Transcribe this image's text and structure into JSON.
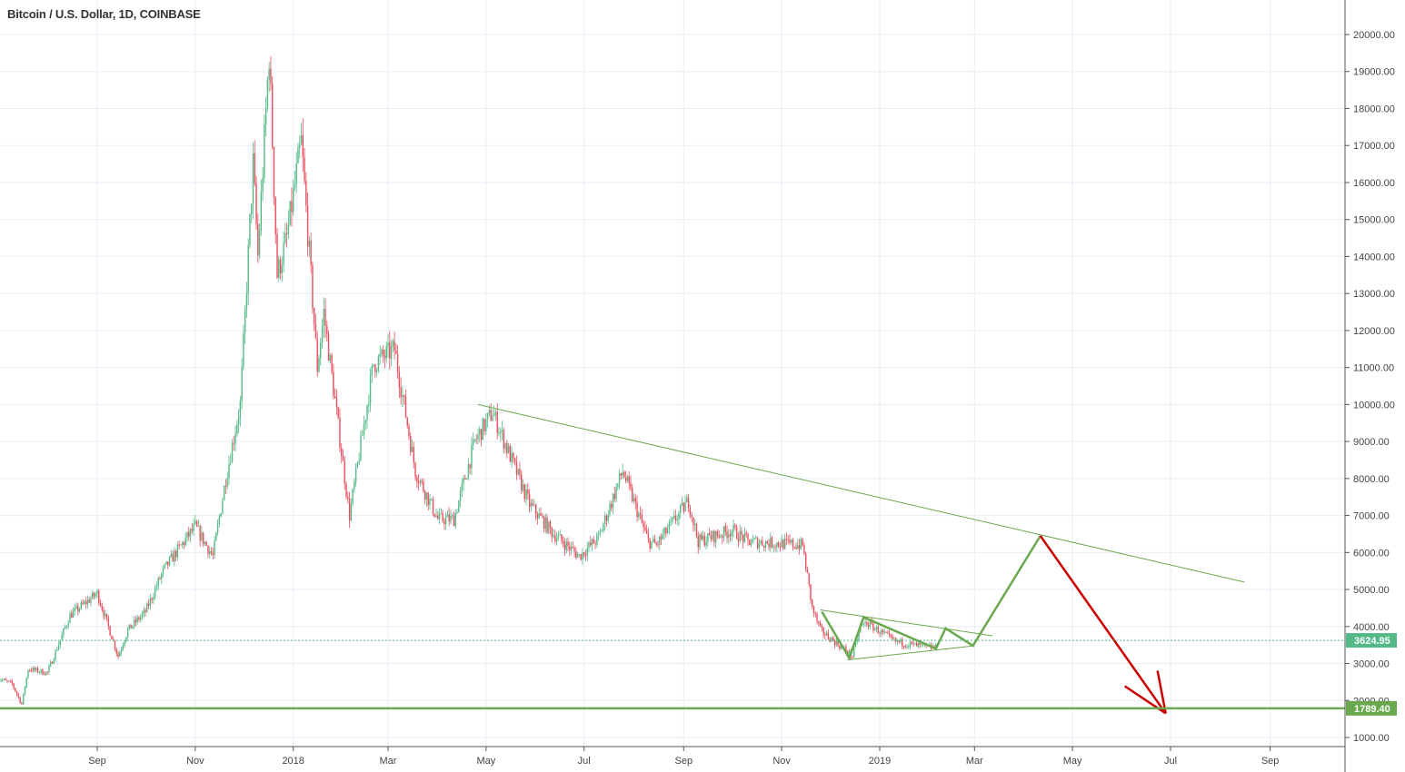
{
  "header": {
    "title": "Bitcoin / U.S. Dollar, 1D, COINBASE"
  },
  "chart_data": {
    "type": "candlestick",
    "title": "Bitcoin / U.S. Dollar, 1D, COINBASE",
    "ylim": [
      1000,
      20000
    ],
    "y_ticks": [
      "1000.00",
      "2000.00",
      "3000.00",
      "4000.00",
      "5000.00",
      "6000.00",
      "7000.00",
      "8000.00",
      "9000.00",
      "10000.00",
      "11000.00",
      "12000.00",
      "13000.00",
      "14000.00",
      "15000.00",
      "16000.00",
      "17000.00",
      "18000.00",
      "19000.00",
      "20000.00"
    ],
    "x_ticks": [
      {
        "label": "Sep",
        "date": "2017-09-01"
      },
      {
        "label": "Nov",
        "date": "2017-11-01"
      },
      {
        "label": "2018",
        "date": "2018-01-01"
      },
      {
        "label": "Mar",
        "date": "2018-03-01"
      },
      {
        "label": "May",
        "date": "2018-05-01"
      },
      {
        "label": "Jul",
        "date": "2018-07-01"
      },
      {
        "label": "Sep",
        "date": "2018-09-01"
      },
      {
        "label": "Nov",
        "date": "2018-11-01"
      },
      {
        "label": "2019",
        "date": "2019-01-01"
      },
      {
        "label": "Mar",
        "date": "2019-03-01"
      },
      {
        "label": "May",
        "date": "2019-05-01"
      },
      {
        "label": "Jul",
        "date": "2019-07-01"
      },
      {
        "label": "Sep",
        "date": "2019-09-01"
      }
    ],
    "grid": true,
    "colors": {
      "up": "#53b987",
      "down": "#eb4d5c",
      "drawing_green": "#6aa84f",
      "arrow_red": "#cc0000",
      "grid": "#e6eef5"
    },
    "close_path": [
      [
        "2017-07-01",
        2600
      ],
      [
        "2017-07-10",
        2450
      ],
      [
        "2017-07-16",
        1900
      ],
      [
        "2017-07-20",
        2850
      ],
      [
        "2017-08-01",
        2750
      ],
      [
        "2017-08-15",
        4300
      ],
      [
        "2017-09-01",
        4900
      ],
      [
        "2017-09-14",
        3200
      ],
      [
        "2017-09-20",
        3900
      ],
      [
        "2017-10-01",
        4400
      ],
      [
        "2017-10-12",
        5500
      ],
      [
        "2017-10-20",
        6000
      ],
      [
        "2017-11-01",
        6700
      ],
      [
        "2017-11-12",
        5900
      ],
      [
        "2017-11-20",
        8000
      ],
      [
        "2017-11-29",
        10000
      ],
      [
        "2017-12-07",
        16500
      ],
      [
        "2017-12-10",
        14000
      ],
      [
        "2017-12-17",
        19500
      ],
      [
        "2017-12-22",
        13500
      ],
      [
        "2017-12-28",
        14500
      ],
      [
        "2018-01-06",
        17100
      ],
      [
        "2018-01-16",
        11000
      ],
      [
        "2018-01-20",
        12500
      ],
      [
        "2018-02-05",
        7000
      ],
      [
        "2018-02-20",
        11100
      ],
      [
        "2018-03-05",
        11500
      ],
      [
        "2018-03-18",
        8200
      ],
      [
        "2018-04-01",
        6900
      ],
      [
        "2018-04-11",
        6900
      ],
      [
        "2018-04-24",
        9000
      ],
      [
        "2018-05-05",
        9800
      ],
      [
        "2018-05-28",
        7300
      ],
      [
        "2018-06-12",
        6500
      ],
      [
        "2018-06-28",
        5900
      ],
      [
        "2018-07-10",
        6400
      ],
      [
        "2018-07-25",
        8200
      ],
      [
        "2018-08-10",
        6300
      ],
      [
        "2018-08-15",
        6200
      ],
      [
        "2018-09-04",
        7400
      ],
      [
        "2018-09-10",
        6300
      ],
      [
        "2018-10-01",
        6600
      ],
      [
        "2018-10-11",
        6300
      ],
      [
        "2018-11-14",
        6200
      ],
      [
        "2018-11-20",
        4500
      ],
      [
        "2018-11-25",
        3900
      ],
      [
        "2018-12-15",
        3200
      ],
      [
        "2018-12-20",
        4000
      ],
      [
        "2018-12-24",
        4100
      ],
      [
        "2019-01-10",
        3600
      ],
      [
        "2019-01-28",
        3450
      ],
      [
        "2019-02-05",
        3430
      ]
    ],
    "last_price": {
      "value": "3624.95",
      "color": "#53b987"
    },
    "level": {
      "value": "1789.40",
      "color": "#6aa84f"
    },
    "drawings": {
      "trendline": [
        [
          "2018-04-26",
          10000
        ],
        [
          "2019-08-16",
          5200
        ]
      ],
      "triangle_upper": [
        [
          "2018-11-25",
          4450
        ],
        [
          "2019-03-12",
          3750
        ]
      ],
      "triangle_lower": [
        [
          "2018-12-12",
          3100
        ],
        [
          "2019-03-01",
          3480
        ]
      ],
      "zigzag": [
        [
          "2018-11-26",
          4400
        ],
        [
          "2018-12-13",
          3150
        ],
        [
          "2018-12-22",
          4250
        ],
        [
          "2019-02-05",
          3400
        ],
        [
          "2019-02-11",
          3950
        ],
        [
          "2019-02-28",
          3480
        ],
        [
          "2019-04-11",
          6450
        ]
      ],
      "arrow": [
        [
          "2019-04-11",
          6450
        ],
        [
          "2019-06-28",
          1650
        ]
      ]
    }
  }
}
